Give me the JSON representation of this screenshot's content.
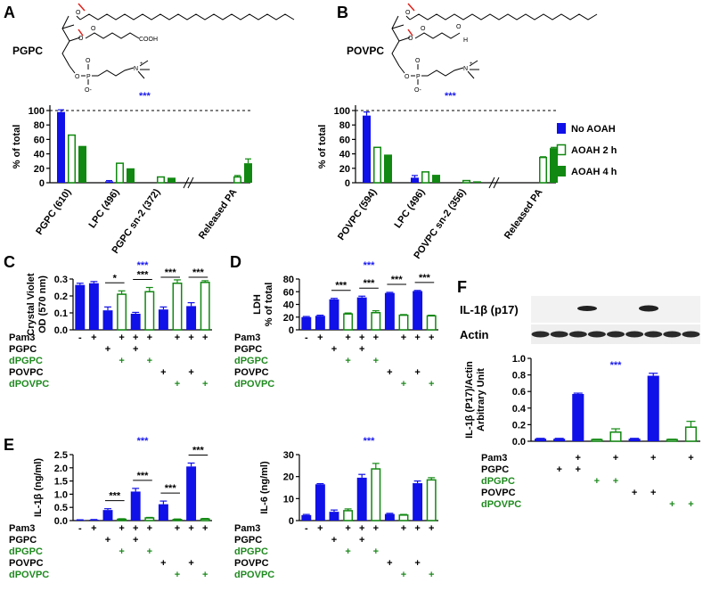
{
  "colors": {
    "blue": "#1010e8",
    "green": "#118811",
    "sig_blue": "#1a1af0",
    "treat_green": "#1f8a1f"
  },
  "panel_a": {
    "letter": "A",
    "compound": "PGPC",
    "mol_cooh": "COOH",
    "mol_o": "O",
    "mol_p": "P",
    "mol_n": "N",
    "mol_plus": "+",
    "mol_ominus": "O-",
    "stars": "***",
    "chart_data": {
      "type": "bar",
      "ylabel": "% of total",
      "yticks": [
        "100",
        "80",
        "60",
        "40",
        "20",
        "0"
      ],
      "ylim": [
        0,
        100
      ],
      "categories": [
        "PGPC (610)",
        "LPC (496)",
        "PGPC sn-2 (372)",
        "Released PA"
      ],
      "series": [
        {
          "name": "No AOAH",
          "values": [
            98,
            2,
            0,
            0
          ],
          "err": [
            3,
            1,
            0,
            0
          ]
        },
        {
          "name": "AOAH 2 h",
          "values": [
            66,
            27,
            8,
            8
          ],
          "err": [
            0,
            0,
            0,
            2
          ]
        },
        {
          "name": "AOAH 4 h",
          "values": [
            51,
            20,
            7,
            27
          ],
          "err": [
            0,
            0,
            0,
            6
          ]
        }
      ],
      "reference_line": 100
    }
  },
  "panel_b": {
    "letter": "B",
    "compound": "POVPC",
    "mol_o": "O",
    "mol_h": "H",
    "mol_p": "P",
    "mol_n": "N",
    "mol_plus": "+",
    "mol_ominus": "O-",
    "stars": "***",
    "chart_data": {
      "type": "bar",
      "ylabel": "% of total",
      "yticks": [
        "100",
        "80",
        "60",
        "40",
        "20",
        "0"
      ],
      "ylim": [
        0,
        100
      ],
      "categories": [
        "POVPC (594)",
        "LPC (496)",
        "POVPC sn-2 (356)",
        "Released PA"
      ],
      "series": [
        {
          "name": "No AOAH",
          "values": [
            93,
            7,
            0,
            0
          ],
          "err": [
            5,
            3,
            0,
            0
          ]
        },
        {
          "name": "AOAH 2 h",
          "values": [
            49,
            15,
            3,
            35
          ],
          "err": [
            0,
            0,
            0,
            1
          ]
        },
        {
          "name": "AOAH 4 h",
          "values": [
            39,
            11,
            2,
            48
          ],
          "err": [
            0,
            0,
            0,
            1
          ]
        }
      ],
      "reference_line": 100
    }
  },
  "legend": [
    "No AOAH",
    "AOAH 2 h",
    "AOAH 4 h"
  ],
  "treatment_labels": [
    "Pam3",
    "PGPC",
    "dPGPC",
    "POVPC",
    "dPOVPC"
  ],
  "panel_c": {
    "letter": "C",
    "stars": "***",
    "chart_data": {
      "type": "bar",
      "ylabel": "Crystal Violet",
      "ylabel2": "OD (570 nm)",
      "yticks": [
        "0.3",
        "0.2",
        "0.1",
        "0.0"
      ],
      "ylim": [
        0,
        0.3
      ],
      "values": [
        0.265,
        0.275,
        0.115,
        0.21,
        0.095,
        0.225,
        0.12,
        0.275,
        0.14,
        0.28
      ],
      "err": [
        0.01,
        0.01,
        0.02,
        0.02,
        0.008,
        0.025,
        0.015,
        0.02,
        0.02,
        0.01
      ],
      "filled": [
        true,
        true,
        true,
        false,
        true,
        false,
        true,
        false,
        true,
        false
      ],
      "brackets": [
        {
          "from": 2,
          "to": 3,
          "label": "*"
        },
        {
          "from": 4,
          "to": 5,
          "label": "***"
        },
        {
          "from": 6,
          "to": 7,
          "label": "***"
        },
        {
          "from": 8,
          "to": 9,
          "label": "***"
        }
      ]
    }
  },
  "panel_d": {
    "letter": "D",
    "stars": "***",
    "chart_data": {
      "type": "bar",
      "ylabel": "LDH",
      "ylabel2": "% of total",
      "yticks": [
        "80",
        "60",
        "40",
        "20",
        "0"
      ],
      "ylim": [
        0,
        80
      ],
      "values": [
        20,
        22,
        48,
        25,
        51,
        27,
        58,
        23,
        61,
        22
      ],
      "err": [
        1,
        1,
        1.5,
        1.5,
        2,
        3,
        1,
        1,
        1,
        1
      ],
      "filled": [
        true,
        true,
        true,
        false,
        true,
        false,
        true,
        false,
        true,
        false
      ],
      "brackets": [
        {
          "from": 2,
          "to": 3,
          "label": "***"
        },
        {
          "from": 4,
          "to": 5,
          "label": "***"
        },
        {
          "from": 6,
          "to": 7,
          "label": "***"
        },
        {
          "from": 8,
          "to": 9,
          "label": "***"
        }
      ]
    }
  },
  "panel_e": {
    "letter": "E",
    "stars": "***",
    "chart_data": {
      "type": "bar",
      "ylabel": "IL-1β (ng/ml)",
      "yticks": [
        "2.5",
        "2.0",
        "1.5",
        "1.0",
        "0.5",
        "0.0"
      ],
      "ylim": [
        0,
        2.5
      ],
      "values": [
        0.02,
        0.03,
        0.4,
        0.05,
        1.1,
        0.1,
        0.62,
        0.04,
        2.05,
        0.06
      ],
      "err": [
        0.01,
        0.01,
        0.05,
        0.02,
        0.12,
        0.02,
        0.12,
        0.02,
        0.13,
        0.02
      ],
      "filled": [
        true,
        true,
        true,
        false,
        true,
        false,
        true,
        false,
        true,
        false
      ],
      "brackets": [
        {
          "from": 2,
          "to": 3,
          "label": "***"
        },
        {
          "from": 4,
          "to": 5,
          "label": "***"
        },
        {
          "from": 6,
          "to": 7,
          "label": "***"
        },
        {
          "from": 8,
          "to": 9,
          "label": "***"
        }
      ]
    }
  },
  "panel_e2": {
    "stars": "***",
    "chart_data": {
      "type": "bar",
      "ylabel": "IL-6 (ng/ml)",
      "yticks": [
        "30",
        "20",
        "10",
        "0"
      ],
      "ylim": [
        0,
        30
      ],
      "values": [
        2.5,
        16.5,
        4,
        4.5,
        19.5,
        23.5,
        3,
        2.5,
        17,
        18.5
      ],
      "err": [
        0.3,
        0.3,
        0.8,
        0.8,
        1.5,
        2.5,
        0.3,
        0.3,
        1,
        1
      ],
      "filled": [
        true,
        true,
        true,
        false,
        true,
        false,
        true,
        false,
        true,
        false
      ],
      "brackets": []
    }
  },
  "panel_f": {
    "letter": "F",
    "blot_label_1": "IL-1β (p17)",
    "blot_label_2": "Actin",
    "stars": "***",
    "chart_data": {
      "type": "bar",
      "ylabel": "IL-1β (P17)/Actin",
      "ylabel2": "Arbitrary Unit",
      "yticks": [
        "1.0",
        "0.8",
        "0.6",
        "0.4",
        "0.2",
        "0.0"
      ],
      "ylim": [
        0,
        1.0
      ],
      "values": [
        0.03,
        0.03,
        0.57,
        0.02,
        0.11,
        0.03,
        0.79,
        0.02,
        0.17
      ],
      "err": [
        0.005,
        0.005,
        0.01,
        0.005,
        0.04,
        0.005,
        0.03,
        0.005,
        0.07
      ],
      "filled": [
        true,
        true,
        true,
        false,
        false,
        true,
        true,
        false,
        false
      ]
    }
  },
  "treatments_c": {
    "pam3": [
      "-",
      "+",
      "",
      "+",
      "+",
      "+",
      "",
      "+",
      "+",
      "+"
    ],
    "pgpc": [
      "",
      "",
      "+",
      "",
      "+",
      "",
      "",
      "",
      "",
      ""
    ],
    "dpgpc": [
      "",
      "",
      "",
      "+",
      "",
      "+",
      "",
      "",
      "",
      ""
    ],
    "povpc": [
      "",
      "",
      "",
      "",
      "",
      "",
      "+",
      "",
      "+",
      ""
    ],
    "dpovpc": [
      "",
      "",
      "",
      "",
      "",
      "",
      "",
      "+",
      "",
      "+"
    ]
  },
  "treatments_f": {
    "pam3": [
      "",
      "",
      "+",
      "",
      "+",
      "",
      "+",
      "",
      "+"
    ],
    "pgpc": [
      "",
      "+",
      "+",
      "",
      "",
      "",
      "",
      "",
      ""
    ],
    "dpgpc": [
      "",
      "",
      "",
      "+",
      "+",
      "",
      "",
      "",
      ""
    ],
    "povpc": [
      "",
      "",
      "",
      "",
      "",
      "+",
      "+",
      "",
      ""
    ],
    "dpovpc": [
      "",
      "",
      "",
      "",
      "",
      "",
      "",
      "+",
      "+"
    ]
  }
}
